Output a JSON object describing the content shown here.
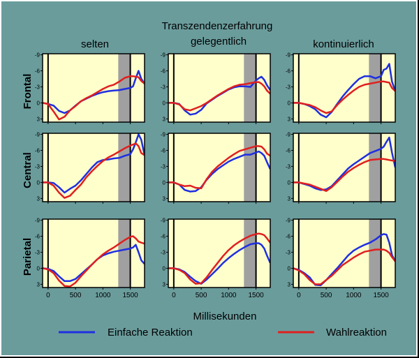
{
  "figure": {
    "title": "Transzendenzerfahrung",
    "column_labels": [
      "selten",
      "gelegentlich",
      "kontinuierlich"
    ],
    "row_labels": [
      "Frontal",
      "Central",
      "Parietal"
    ],
    "xlabel": "Millisekunden",
    "legend": [
      {
        "name": "Einfache Reaktion",
        "color": "#1f2fe0"
      },
      {
        "name": "Wahlreaktion",
        "color": "#e01f1f"
      }
    ],
    "colors": {
      "background": "#6b9c9c",
      "panel": "#ffffcc",
      "shade": "#a0a0a0"
    }
  },
  "chart_data": {
    "type": "line",
    "title": "Transzendenzerfahrung",
    "xlabel": "Millisekunden",
    "ylabel": "",
    "xlim": [
      -100,
      1760
    ],
    "ylim": [
      3.6,
      -9.2
    ],
    "y_inverted": true,
    "x_ticks": [
      0,
      500,
      1000,
      1500
    ],
    "x_tick_labels": [
      "0",
      "500",
      "1000",
      "1500"
    ],
    "y_ticks": [
      3,
      0,
      -3,
      -6,
      -9
    ],
    "y_tick_labels": [
      "3",
      "0",
      "-3",
      "-6",
      "-9"
    ],
    "x_tick_labels_shown_on_bottom_row_only": true,
    "markers_ms": [
      0,
      1500
    ],
    "shaded_interval_ms": [
      1280,
      1500
    ],
    "panels": [
      {
        "row": "Frontal",
        "col": "selten",
        "series": [
          {
            "name": "Einfache Reaktion",
            "x": [
              -100,
              0,
              100,
              200,
              300,
              400,
              500,
              600,
              700,
              800,
              900,
              1000,
              1100,
              1200,
              1300,
              1400,
              1500,
              1550,
              1600,
              1650,
              1700,
              1760
            ],
            "y": [
              0,
              0.2,
              0.5,
              1.5,
              1.9,
              1.4,
              0.5,
              -0.3,
              -0.8,
              -1.3,
              -1.7,
              -2.0,
              -2.2,
              -2.3,
              -2.4,
              -2.6,
              -2.8,
              -3.1,
              -4.6,
              -6.0,
              -4.5,
              -3.6
            ]
          },
          {
            "name": "Wahlreaktion",
            "x": [
              -100,
              0,
              100,
              200,
              300,
              400,
              500,
              600,
              700,
              800,
              900,
              1000,
              1100,
              1200,
              1300,
              1400,
              1500,
              1550,
              1600,
              1650,
              1700,
              1760
            ],
            "y": [
              0,
              0.2,
              1.6,
              3.1,
              2.6,
              1.4,
              0.6,
              -0.3,
              -0.9,
              -1.4,
              -2.0,
              -2.6,
              -3.1,
              -3.4,
              -4.0,
              -4.7,
              -5.0,
              -5.0,
              -4.9,
              -4.8,
              -4.1,
              -3.6
            ]
          }
        ]
      },
      {
        "row": "Frontal",
        "col": "gelegentlich",
        "series": [
          {
            "name": "Einfache Reaktion",
            "x": [
              -100,
              0,
              100,
              200,
              300,
              400,
              500,
              600,
              700,
              800,
              900,
              1000,
              1100,
              1200,
              1300,
              1400,
              1500,
              1550,
              1600,
              1650,
              1700,
              1760
            ],
            "y": [
              0,
              0,
              0.2,
              1.4,
              2.2,
              2.0,
              1.3,
              0.1,
              -0.6,
              -1.3,
              -1.9,
              -2.5,
              -2.9,
              -3.1,
              -3.1,
              -3.0,
              -4.2,
              -4.6,
              -4.9,
              -4.3,
              -3.3,
              -2.4
            ]
          },
          {
            "name": "Wahlreaktion",
            "x": [
              -100,
              0,
              100,
              200,
              300,
              400,
              500,
              600,
              700,
              800,
              900,
              1000,
              1100,
              1200,
              1300,
              1400,
              1500,
              1550,
              1600,
              1650,
              1700,
              1760
            ],
            "y": [
              0,
              0,
              0.3,
              1.2,
              1.4,
              1.0,
              0.6,
              0.0,
              -0.7,
              -1.4,
              -2.0,
              -2.6,
              -3.1,
              -3.4,
              -3.5,
              -3.7,
              -3.9,
              -3.9,
              -3.6,
              -3.1,
              -2.3,
              -1.7
            ]
          }
        ]
      },
      {
        "row": "Frontal",
        "col": "kontinuierlich",
        "series": [
          {
            "name": "Einfache Reaktion",
            "x": [
              -100,
              0,
              100,
              200,
              300,
              400,
              500,
              600,
              700,
              800,
              900,
              1000,
              1100,
              1200,
              1300,
              1400,
              1500,
              1550,
              1600,
              1650,
              1700,
              1760
            ],
            "y": [
              0,
              0,
              0.2,
              0.6,
              1.2,
              2.2,
              2.7,
              1.7,
              0.2,
              -1.2,
              -2.4,
              -3.5,
              -4.5,
              -5.0,
              -5.0,
              -4.6,
              -5.0,
              -6.2,
              -6.4,
              -7.3,
              -4.0,
              -2.2
            ]
          },
          {
            "name": "Wahlreaktion",
            "x": [
              -100,
              0,
              100,
              200,
              300,
              400,
              500,
              600,
              700,
              800,
              900,
              1000,
              1100,
              1200,
              1300,
              1400,
              1500,
              1550,
              1600,
              1650,
              1700,
              1760
            ],
            "y": [
              0,
              0,
              0.2,
              0.4,
              0.8,
              1.4,
              1.9,
              1.6,
              0.4,
              -0.6,
              -1.5,
              -2.3,
              -3.0,
              -3.4,
              -3.6,
              -3.8,
              -4.0,
              -4.0,
              -3.9,
              -3.8,
              -2.8,
              -2.2
            ]
          }
        ]
      },
      {
        "row": "Central",
        "col": "selten",
        "series": [
          {
            "name": "Einfache Reaktion",
            "x": [
              -100,
              0,
              100,
              200,
              300,
              400,
              500,
              600,
              700,
              800,
              900,
              1000,
              1100,
              1200,
              1300,
              1400,
              1500,
              1550,
              1600,
              1650,
              1700,
              1760
            ],
            "y": [
              0,
              0,
              0.1,
              0.9,
              1.9,
              1.2,
              0.6,
              -0.4,
              -1.6,
              -2.8,
              -3.8,
              -4.2,
              -4.3,
              -4.5,
              -4.6,
              -5.0,
              -5.3,
              -6.2,
              -7.5,
              -9.0,
              -8.0,
              -5.1
            ]
          },
          {
            "name": "Wahlreaktion",
            "x": [
              -100,
              0,
              100,
              200,
              300,
              400,
              500,
              600,
              700,
              800,
              900,
              1000,
              1100,
              1200,
              1300,
              1400,
              1500,
              1550,
              1600,
              1650,
              1700,
              1760
            ],
            "y": [
              0,
              0,
              0.6,
              1.9,
              2.9,
              2.5,
              1.4,
              0.4,
              -1.0,
              -2.1,
              -3.1,
              -4.0,
              -4.7,
              -5.2,
              -5.8,
              -6.4,
              -6.9,
              -7.1,
              -7.3,
              -6.8,
              -5.5,
              -5.1
            ]
          }
        ]
      },
      {
        "row": "Central",
        "col": "gelegentlich",
        "series": [
          {
            "name": "Einfache Reaktion",
            "x": [
              -100,
              0,
              100,
              200,
              300,
              400,
              500,
              600,
              700,
              800,
              900,
              1000,
              1100,
              1200,
              1300,
              1400,
              1500,
              1550,
              1600,
              1650,
              1700,
              1760
            ],
            "y": [
              0,
              0,
              0.4,
              1.4,
              1.7,
              1.6,
              0.9,
              -0.5,
              -1.6,
              -2.5,
              -3.2,
              -3.9,
              -4.4,
              -4.8,
              -5.2,
              -5.2,
              -5.6,
              -5.8,
              -5.5,
              -5.0,
              -3.8,
              -2.5
            ]
          },
          {
            "name": "Wahlreaktion",
            "x": [
              -100,
              0,
              100,
              200,
              300,
              400,
              500,
              600,
              700,
              800,
              900,
              1000,
              1100,
              1200,
              1300,
              1400,
              1500,
              1550,
              1600,
              1650,
              1700,
              1760
            ],
            "y": [
              0,
              0,
              0.4,
              0.7,
              0.6,
              1.0,
              1.1,
              -0.6,
              -2.0,
              -3.0,
              -3.8,
              -4.6,
              -5.3,
              -5.9,
              -6.2,
              -6.5,
              -6.8,
              -6.8,
              -6.7,
              -6.2,
              -5.4,
              -5.0
            ]
          }
        ]
      },
      {
        "row": "Central",
        "col": "kontinuierlich",
        "series": [
          {
            "name": "Einfache Reaktion",
            "x": [
              -100,
              0,
              100,
              200,
              300,
              400,
              500,
              600,
              700,
              800,
              900,
              1000,
              1100,
              1200,
              1300,
              1400,
              1500,
              1550,
              1600,
              1650,
              1700,
              1760
            ],
            "y": [
              0,
              0,
              0.3,
              0.6,
              1.1,
              1.4,
              1.3,
              0.7,
              -0.4,
              -1.5,
              -2.6,
              -3.4,
              -4.1,
              -4.8,
              -5.5,
              -5.9,
              -6.3,
              -6.7,
              -7.6,
              -8.4,
              -5.6,
              -2.8
            ]
          },
          {
            "name": "Wahlreaktion",
            "x": [
              -100,
              0,
              100,
              200,
              300,
              400,
              500,
              600,
              700,
              800,
              900,
              1000,
              1100,
              1200,
              1300,
              1400,
              1500,
              1550,
              1600,
              1650,
              1700,
              1760
            ],
            "y": [
              0,
              0,
              0.2,
              0.4,
              0.8,
              1.2,
              1.6,
              0.9,
              -0.1,
              -1.1,
              -2.0,
              -2.7,
              -3.3,
              -3.8,
              -4.2,
              -4.3,
              -4.4,
              -4.4,
              -4.3,
              -4.2,
              -4.1,
              -4.0
            ]
          }
        ]
      },
      {
        "row": "Parietal",
        "col": "selten",
        "series": [
          {
            "name": "Einfache Reaktion",
            "x": [
              -100,
              0,
              100,
              200,
              300,
              400,
              500,
              600,
              700,
              800,
              900,
              1000,
              1100,
              1200,
              1300,
              1400,
              1500,
              1550,
              1600,
              1650,
              1700,
              1760
            ],
            "y": [
              0,
              0.1,
              0.5,
              1.5,
              2.4,
              2.4,
              2.0,
              1.1,
              0.2,
              -0.7,
              -1.7,
              -2.4,
              -2.8,
              -3.1,
              -3.3,
              -3.5,
              -3.7,
              -3.9,
              -4.4,
              -3.0,
              -1.5,
              -0.8
            ]
          },
          {
            "name": "Wahlreaktion",
            "x": [
              -100,
              0,
              100,
              200,
              300,
              400,
              500,
              600,
              700,
              800,
              900,
              1000,
              1100,
              1200,
              1300,
              1400,
              1500,
              1550,
              1600,
              1650,
              1700,
              1760
            ],
            "y": [
              0,
              0.2,
              0.9,
              2.3,
              3.3,
              3.4,
              2.7,
              1.5,
              0.4,
              -0.7,
              -1.7,
              -2.6,
              -3.3,
              -3.9,
              -4.6,
              -5.3,
              -5.9,
              -6.0,
              -5.6,
              -5.0,
              -4.8,
              -4.6
            ]
          }
        ]
      },
      {
        "row": "Parietal",
        "col": "gelegentlich",
        "series": [
          {
            "name": "Einfache Reaktion",
            "x": [
              -100,
              0,
              100,
              200,
              300,
              400,
              500,
              600,
              700,
              800,
              900,
              1000,
              1100,
              1200,
              1300,
              1400,
              1500,
              1550,
              1600,
              1650,
              1700,
              1760
            ],
            "y": [
              0,
              0,
              0.2,
              0.7,
              1.6,
              2.4,
              2.9,
              2.1,
              1.1,
              0.1,
              -1.0,
              -1.9,
              -2.7,
              -3.4,
              -4.0,
              -4.5,
              -4.7,
              -4.7,
              -4.4,
              -3.7,
              -2.4,
              -1.0
            ]
          },
          {
            "name": "Wahlreaktion",
            "x": [
              -100,
              0,
              100,
              200,
              300,
              400,
              500,
              600,
              700,
              800,
              900,
              1000,
              1100,
              1200,
              1300,
              1400,
              1500,
              1550,
              1600,
              1650,
              1700,
              1760
            ],
            "y": [
              0,
              0,
              0.3,
              0.9,
              2.1,
              2.9,
              2.8,
              1.7,
              0.3,
              -1.0,
              -2.3,
              -3.4,
              -4.3,
              -5.0,
              -5.6,
              -6.1,
              -6.4,
              -6.5,
              -6.4,
              -6.2,
              -5.6,
              -4.8
            ]
          }
        ]
      },
      {
        "row": "Parietal",
        "col": "kontinuierlich",
        "series": [
          {
            "name": "Einfache Reaktion",
            "x": [
              -100,
              0,
              100,
              200,
              300,
              400,
              500,
              600,
              700,
              800,
              900,
              1000,
              1100,
              1200,
              1300,
              1400,
              1500,
              1550,
              1600,
              1650,
              1700,
              1760
            ],
            "y": [
              0,
              0.3,
              0.9,
              1.7,
              3.1,
              3.2,
              2.2,
              1.1,
              0.0,
              -1.2,
              -2.4,
              -3.3,
              -3.9,
              -4.4,
              -4.8,
              -5.4,
              -6.2,
              -6.4,
              -6.3,
              -4.8,
              -2.5,
              -1.3
            ]
          },
          {
            "name": "Wahlreaktion",
            "x": [
              -100,
              0,
              100,
              200,
              300,
              400,
              500,
              600,
              700,
              800,
              900,
              1000,
              1100,
              1200,
              1300,
              1400,
              1500,
              1550,
              1600,
              1650,
              1700,
              1760
            ],
            "y": [
              0,
              0.4,
              1.1,
              2.2,
              3.0,
              3.0,
              2.2,
              1.4,
              0.4,
              -0.6,
              -1.3,
              -2.0,
              -2.6,
              -3.1,
              -3.3,
              -3.5,
              -3.5,
              -3.5,
              -3.3,
              -2.9,
              -2.1,
              -1.3
            ]
          }
        ]
      }
    ]
  }
}
